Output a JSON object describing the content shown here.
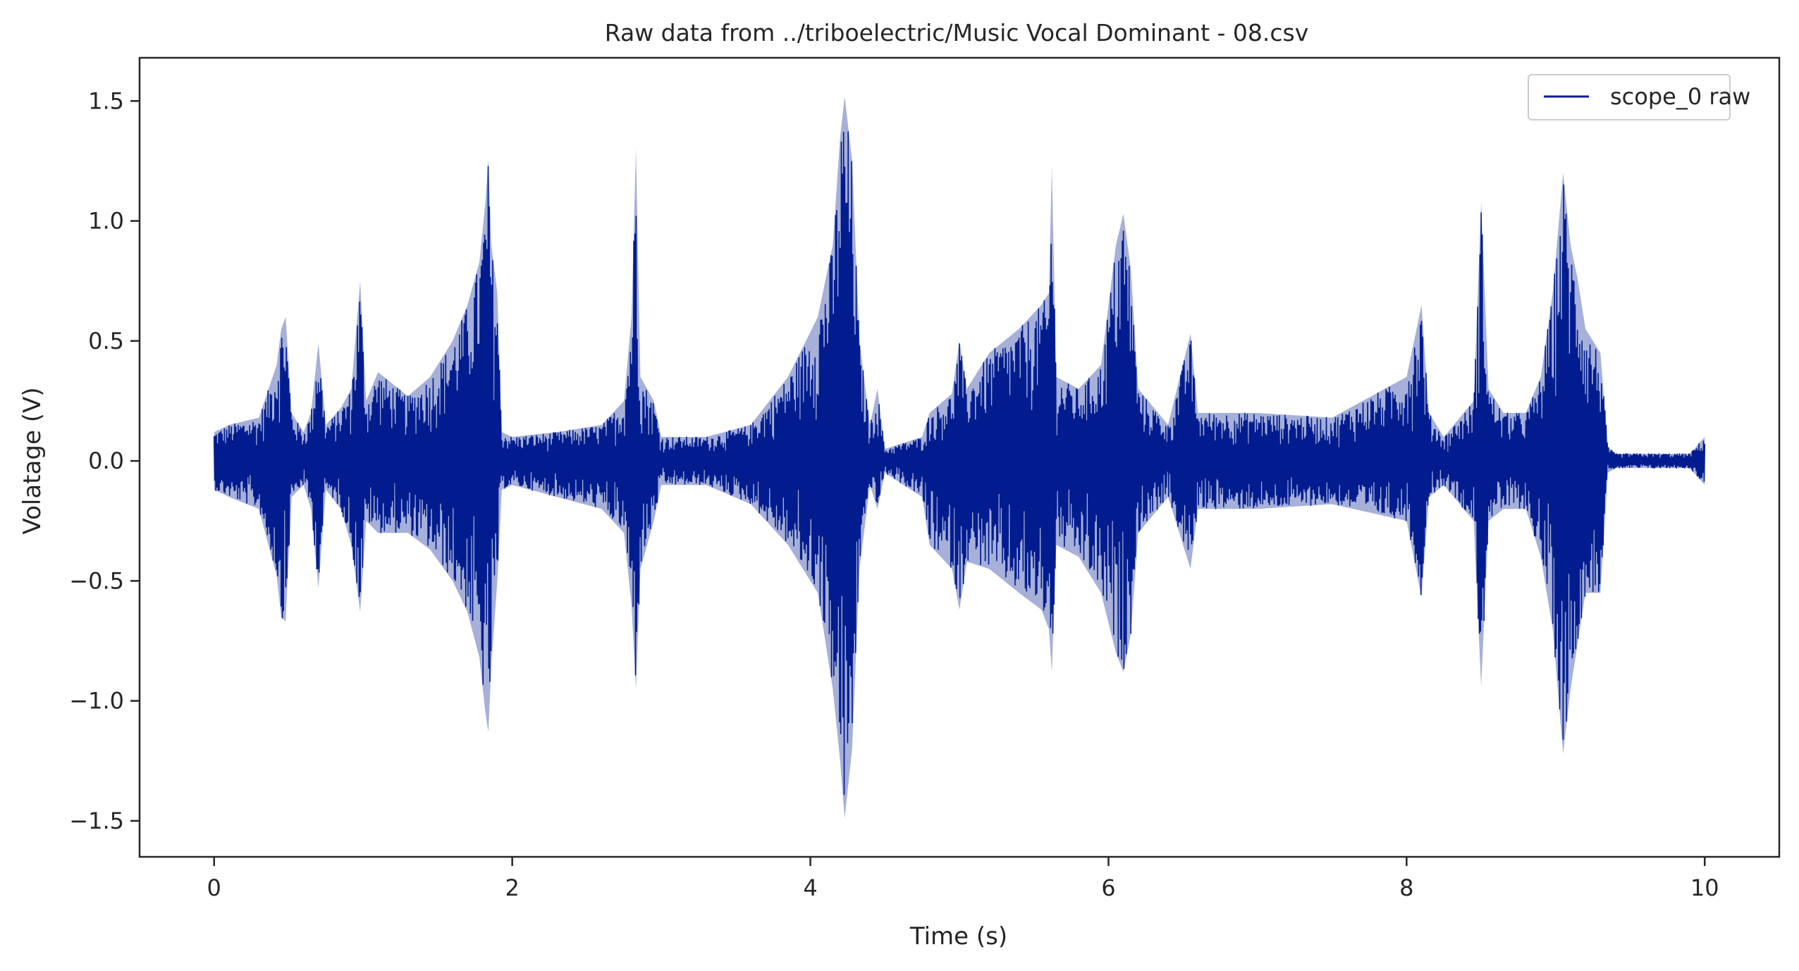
{
  "chart_data": {
    "type": "line",
    "title": "Raw data from ../triboelectric/Music Vocal Dominant - 08.csv",
    "xlabel": "Time (s)",
    "ylabel": "Volatage (V)",
    "xlim": [
      -0.5,
      10.5
    ],
    "ylim": [
      -1.65,
      1.68
    ],
    "x_ticks": [
      0,
      2,
      4,
      6,
      8,
      10
    ],
    "x_tick_labels": [
      "0",
      "2",
      "4",
      "6",
      "8",
      "10"
    ],
    "y_ticks": [
      -1.5,
      -1.0,
      -0.5,
      0.0,
      0.5,
      1.0,
      1.5
    ],
    "y_tick_labels": [
      "−1.5",
      "−1.0",
      "−0.5",
      "0.0",
      "0.5",
      "1.0",
      "1.5"
    ],
    "grid": false,
    "legend_position": "top-right",
    "series": [
      {
        "name": "scope_0 raw",
        "color": "#001c8f",
        "x_range": [
          0,
          10
        ],
        "baseline": 0.0,
        "upper_envelope": [
          [
            0,
            0.12
          ],
          [
            0.1,
            0.15
          ],
          [
            0.3,
            0.18
          ],
          [
            0.42,
            0.4
          ],
          [
            0.45,
            0.55
          ],
          [
            0.48,
            0.6
          ],
          [
            0.52,
            0.2
          ],
          [
            0.6,
            0.12
          ],
          [
            0.65,
            0.2
          ],
          [
            0.7,
            0.49
          ],
          [
            0.75,
            0.15
          ],
          [
            0.85,
            0.22
          ],
          [
            0.92,
            0.3
          ],
          [
            0.98,
            0.75
          ],
          [
            1.02,
            0.25
          ],
          [
            1.1,
            0.37
          ],
          [
            1.3,
            0.27
          ],
          [
            1.45,
            0.35
          ],
          [
            1.6,
            0.5
          ],
          [
            1.7,
            0.65
          ],
          [
            1.78,
            0.83
          ],
          [
            1.82,
            1.08
          ],
          [
            1.84,
            1.26
          ],
          [
            1.86,
            0.9
          ],
          [
            1.9,
            0.7
          ],
          [
            1.93,
            0.12
          ],
          [
            2.0,
            0.1
          ],
          [
            2.3,
            0.12
          ],
          [
            2.6,
            0.15
          ],
          [
            2.75,
            0.25
          ],
          [
            2.8,
            0.6
          ],
          [
            2.83,
            1.3
          ],
          [
            2.86,
            0.35
          ],
          [
            2.95,
            0.25
          ],
          [
            3.0,
            0.1
          ],
          [
            3.3,
            0.1
          ],
          [
            3.6,
            0.15
          ],
          [
            3.85,
            0.35
          ],
          [
            4.05,
            0.6
          ],
          [
            4.15,
            0.9
          ],
          [
            4.2,
            1.35
          ],
          [
            4.23,
            1.52
          ],
          [
            4.28,
            1.25
          ],
          [
            4.33,
            0.5
          ],
          [
            4.4,
            0.15
          ],
          [
            4.45,
            0.3
          ],
          [
            4.5,
            0.05
          ],
          [
            4.75,
            0.1
          ],
          [
            4.8,
            0.2
          ],
          [
            4.95,
            0.28
          ],
          [
            5.0,
            0.5
          ],
          [
            5.05,
            0.3
          ],
          [
            5.2,
            0.45
          ],
          [
            5.4,
            0.55
          ],
          [
            5.55,
            0.65
          ],
          [
            5.6,
            0.7
          ],
          [
            5.62,
            1.23
          ],
          [
            5.65,
            0.35
          ],
          [
            5.8,
            0.3
          ],
          [
            5.95,
            0.4
          ],
          [
            6.05,
            0.9
          ],
          [
            6.1,
            1.03
          ],
          [
            6.15,
            0.8
          ],
          [
            6.2,
            0.3
          ],
          [
            6.4,
            0.15
          ],
          [
            6.55,
            0.53
          ],
          [
            6.6,
            0.2
          ],
          [
            6.8,
            0.2
          ],
          [
            7.0,
            0.2
          ],
          [
            7.5,
            0.18
          ],
          [
            8.0,
            0.35
          ],
          [
            8.1,
            0.65
          ],
          [
            8.15,
            0.2
          ],
          [
            8.25,
            0.1
          ],
          [
            8.45,
            0.25
          ],
          [
            8.5,
            1.08
          ],
          [
            8.55,
            0.3
          ],
          [
            8.65,
            0.2
          ],
          [
            8.8,
            0.2
          ],
          [
            8.9,
            0.35
          ],
          [
            8.98,
            0.7
          ],
          [
            9.05,
            1.2
          ],
          [
            9.1,
            0.9
          ],
          [
            9.15,
            0.75
          ],
          [
            9.2,
            0.55
          ],
          [
            9.3,
            0.45
          ],
          [
            9.35,
            0.06
          ],
          [
            9.4,
            0.03
          ],
          [
            9.9,
            0.03
          ],
          [
            10.0,
            0.1
          ]
        ],
        "lower_envelope": [
          [
            0,
            -0.12
          ],
          [
            0.1,
            -0.15
          ],
          [
            0.3,
            -0.2
          ],
          [
            0.42,
            -0.48
          ],
          [
            0.45,
            -0.65
          ],
          [
            0.48,
            -0.67
          ],
          [
            0.52,
            -0.15
          ],
          [
            0.6,
            -0.1
          ],
          [
            0.65,
            -0.2
          ],
          [
            0.7,
            -0.53
          ],
          [
            0.75,
            -0.12
          ],
          [
            0.85,
            -0.2
          ],
          [
            0.92,
            -0.35
          ],
          [
            0.98,
            -0.63
          ],
          [
            1.02,
            -0.25
          ],
          [
            1.1,
            -0.3
          ],
          [
            1.3,
            -0.3
          ],
          [
            1.45,
            -0.37
          ],
          [
            1.6,
            -0.5
          ],
          [
            1.7,
            -0.63
          ],
          [
            1.78,
            -0.82
          ],
          [
            1.82,
            -1.05
          ],
          [
            1.84,
            -1.13
          ],
          [
            1.86,
            -0.85
          ],
          [
            1.9,
            -0.5
          ],
          [
            1.93,
            -0.12
          ],
          [
            2.0,
            -0.1
          ],
          [
            2.3,
            -0.15
          ],
          [
            2.6,
            -0.2
          ],
          [
            2.75,
            -0.3
          ],
          [
            2.8,
            -0.6
          ],
          [
            2.83,
            -0.95
          ],
          [
            2.86,
            -0.45
          ],
          [
            2.95,
            -0.25
          ],
          [
            3.0,
            -0.1
          ],
          [
            3.3,
            -0.1
          ],
          [
            3.6,
            -0.18
          ],
          [
            3.85,
            -0.35
          ],
          [
            4.05,
            -0.55
          ],
          [
            4.15,
            -0.95
          ],
          [
            4.2,
            -1.25
          ],
          [
            4.23,
            -1.49
          ],
          [
            4.28,
            -1.2
          ],
          [
            4.33,
            -0.45
          ],
          [
            4.4,
            -0.1
          ],
          [
            4.45,
            -0.2
          ],
          [
            4.5,
            -0.05
          ],
          [
            4.75,
            -0.15
          ],
          [
            4.8,
            -0.35
          ],
          [
            4.95,
            -0.45
          ],
          [
            5.0,
            -0.62
          ],
          [
            5.05,
            -0.42
          ],
          [
            5.2,
            -0.45
          ],
          [
            5.4,
            -0.55
          ],
          [
            5.55,
            -0.62
          ],
          [
            5.6,
            -0.7
          ],
          [
            5.62,
            -0.88
          ],
          [
            5.65,
            -0.35
          ],
          [
            5.8,
            -0.4
          ],
          [
            5.95,
            -0.55
          ],
          [
            6.05,
            -0.8
          ],
          [
            6.1,
            -0.88
          ],
          [
            6.15,
            -0.72
          ],
          [
            6.2,
            -0.3
          ],
          [
            6.4,
            -0.15
          ],
          [
            6.55,
            -0.45
          ],
          [
            6.6,
            -0.2
          ],
          [
            6.8,
            -0.2
          ],
          [
            7.0,
            -0.2
          ],
          [
            7.5,
            -0.18
          ],
          [
            8.0,
            -0.25
          ],
          [
            8.1,
            -0.57
          ],
          [
            8.15,
            -0.15
          ],
          [
            8.25,
            -0.1
          ],
          [
            8.45,
            -0.25
          ],
          [
            8.5,
            -0.94
          ],
          [
            8.55,
            -0.25
          ],
          [
            8.65,
            -0.2
          ],
          [
            8.8,
            -0.2
          ],
          [
            8.9,
            -0.4
          ],
          [
            8.98,
            -0.7
          ],
          [
            9.05,
            -1.22
          ],
          [
            9.1,
            -0.95
          ],
          [
            9.15,
            -0.75
          ],
          [
            9.2,
            -0.55
          ],
          [
            9.3,
            -0.55
          ],
          [
            9.35,
            -0.05
          ],
          [
            9.4,
            -0.03
          ],
          [
            9.9,
            -0.03
          ],
          [
            10.0,
            -0.1
          ]
        ]
      }
    ]
  }
}
